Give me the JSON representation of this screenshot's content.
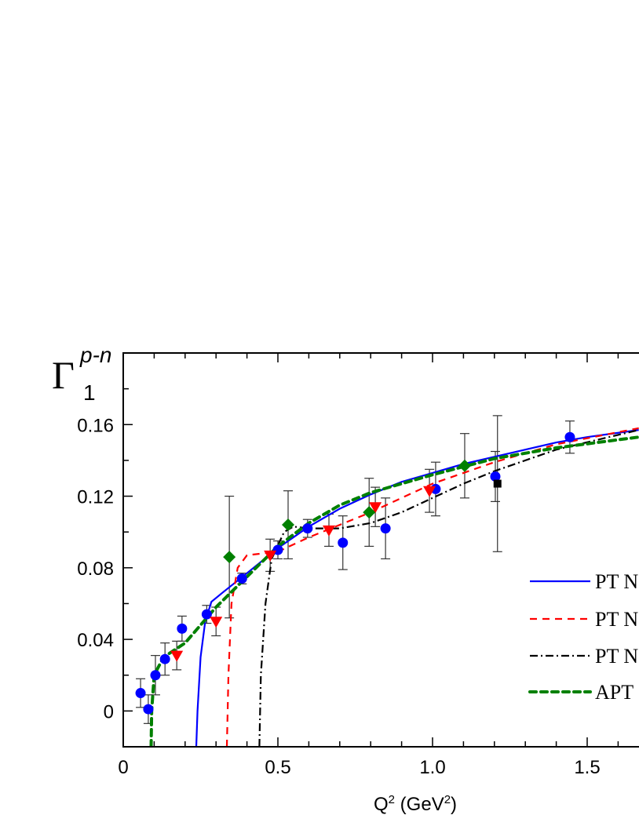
{
  "chart_data": {
    "type": "scatter",
    "title": "",
    "xlabel": "Q² (GeV²)",
    "xlabel_parts": {
      "base": "Q",
      "sup1": "2",
      "mid": " (GeV",
      "sup2": "2",
      "end": ")"
    },
    "ylabel": {
      "symbol": "Γ",
      "sub": "1",
      "sup": "p-n"
    },
    "xlim": [
      0,
      1.667
    ],
    "ylim": [
      -0.02,
      0.2
    ],
    "x_ticks": [
      0,
      0.5,
      1.0,
      1.5
    ],
    "x_tick_labels": [
      "0",
      "0.5",
      "1.0",
      "1.5"
    ],
    "y_ticks": [
      0,
      0.04,
      0.08,
      0.12,
      0.16
    ],
    "y_tick_labels": [
      "0",
      "0.04",
      "0.08",
      "0.12",
      "0.16"
    ],
    "x_minor_step": 0.1,
    "y_minor_step": 0.02,
    "grid": false,
    "legend_placement": "bottom-right",
    "curves": [
      {
        "name": "PT N",
        "color": "#0000ff",
        "style": "solid",
        "points": [
          [
            0.236,
            -0.02
          ],
          [
            0.24,
            0.0
          ],
          [
            0.25,
            0.03
          ],
          [
            0.265,
            0.05
          ],
          [
            0.285,
            0.061
          ],
          [
            0.32,
            0.066
          ],
          [
            0.4,
            0.077
          ],
          [
            0.5,
            0.091
          ],
          [
            0.6,
            0.103
          ],
          [
            0.7,
            0.113
          ],
          [
            0.8,
            0.121
          ],
          [
            0.9,
            0.128
          ],
          [
            1.0,
            0.133
          ],
          [
            1.1,
            0.138
          ],
          [
            1.2,
            0.142
          ],
          [
            1.3,
            0.146
          ],
          [
            1.4,
            0.15
          ],
          [
            1.5,
            0.153
          ],
          [
            1.667,
            0.157
          ]
        ]
      },
      {
        "name": "PT N",
        "color": "#ff0000",
        "style": "dashed",
        "points": [
          [
            0.335,
            -0.02
          ],
          [
            0.34,
            0.02
          ],
          [
            0.35,
            0.06
          ],
          [
            0.37,
            0.08
          ],
          [
            0.4,
            0.087
          ],
          [
            0.45,
            0.088
          ],
          [
            0.5,
            0.089
          ],
          [
            0.6,
            0.097
          ],
          [
            0.7,
            0.104
          ],
          [
            0.8,
            0.111
          ],
          [
            0.9,
            0.119
          ],
          [
            1.0,
            0.127
          ],
          [
            1.2,
            0.139
          ],
          [
            1.4,
            0.149
          ],
          [
            1.667,
            0.158
          ]
        ]
      },
      {
        "name": "PT N",
        "color": "#000000",
        "style": "dash-dot",
        "points": [
          [
            0.44,
            -0.02
          ],
          [
            0.445,
            0.02
          ],
          [
            0.46,
            0.06
          ],
          [
            0.48,
            0.085
          ],
          [
            0.52,
            0.1
          ],
          [
            0.55,
            0.103
          ],
          [
            0.6,
            0.102
          ],
          [
            0.7,
            0.102
          ],
          [
            0.8,
            0.105
          ],
          [
            0.9,
            0.111
          ],
          [
            1.0,
            0.119
          ],
          [
            1.1,
            0.127
          ],
          [
            1.2,
            0.134
          ],
          [
            1.4,
            0.146
          ],
          [
            1.667,
            0.157
          ]
        ]
      },
      {
        "name": "APT",
        "color": "#008000",
        "style": "short-dashed",
        "points": [
          [
            0.09,
            -0.02
          ],
          [
            0.092,
            0.0
          ],
          [
            0.1,
            0.02
          ],
          [
            0.13,
            0.03
          ],
          [
            0.2,
            0.038
          ],
          [
            0.3,
            0.058
          ],
          [
            0.4,
            0.075
          ],
          [
            0.5,
            0.092
          ],
          [
            0.6,
            0.105
          ],
          [
            0.7,
            0.115
          ],
          [
            0.8,
            0.122
          ],
          [
            1.0,
            0.132
          ],
          [
            1.2,
            0.141
          ],
          [
            1.4,
            0.147
          ],
          [
            1.667,
            0.153
          ]
        ]
      }
    ],
    "data_sets": [
      {
        "marker": "circle",
        "color": "#0000ff",
        "points": [
          [
            0.056,
            0.01,
            0.008
          ],
          [
            0.081,
            0.001,
            0.008
          ],
          [
            0.104,
            0.02,
            0.011
          ],
          [
            0.135,
            0.029,
            0.009
          ],
          [
            0.19,
            0.046,
            0.007
          ],
          [
            0.27,
            0.054,
            0.005
          ],
          [
            0.384,
            0.074,
            0.003
          ],
          [
            0.5,
            0.09,
            0.005
          ],
          [
            0.596,
            0.102,
            0.005
          ],
          [
            0.71,
            0.094,
            0.015
          ],
          [
            0.848,
            0.102,
            0.017
          ],
          [
            1.01,
            0.124,
            0.015
          ],
          [
            1.203,
            0.131,
            0.014
          ],
          [
            1.444,
            0.153,
            0.009
          ]
        ]
      },
      {
        "marker": "triangle-down",
        "color": "#ff0000",
        "points": [
          [
            0.173,
            0.031,
            0.008
          ],
          [
            0.3,
            0.05,
            0.008
          ],
          [
            0.475,
            0.087,
            0.009
          ],
          [
            0.665,
            0.101,
            0.009
          ],
          [
            0.815,
            0.114,
            0.011
          ],
          [
            0.99,
            0.123,
            0.012
          ]
        ]
      },
      {
        "marker": "diamond",
        "color": "#008000",
        "points": [
          [
            0.343,
            0.086,
            0.034
          ],
          [
            0.533,
            0.104,
            0.019
          ],
          [
            0.795,
            0.111,
            0.019
          ],
          [
            1.104,
            0.137,
            0.018
          ]
        ]
      },
      {
        "marker": "square",
        "color": "#000000",
        "points": [
          [
            1.21,
            0.127,
            0.038
          ]
        ]
      }
    ]
  }
}
